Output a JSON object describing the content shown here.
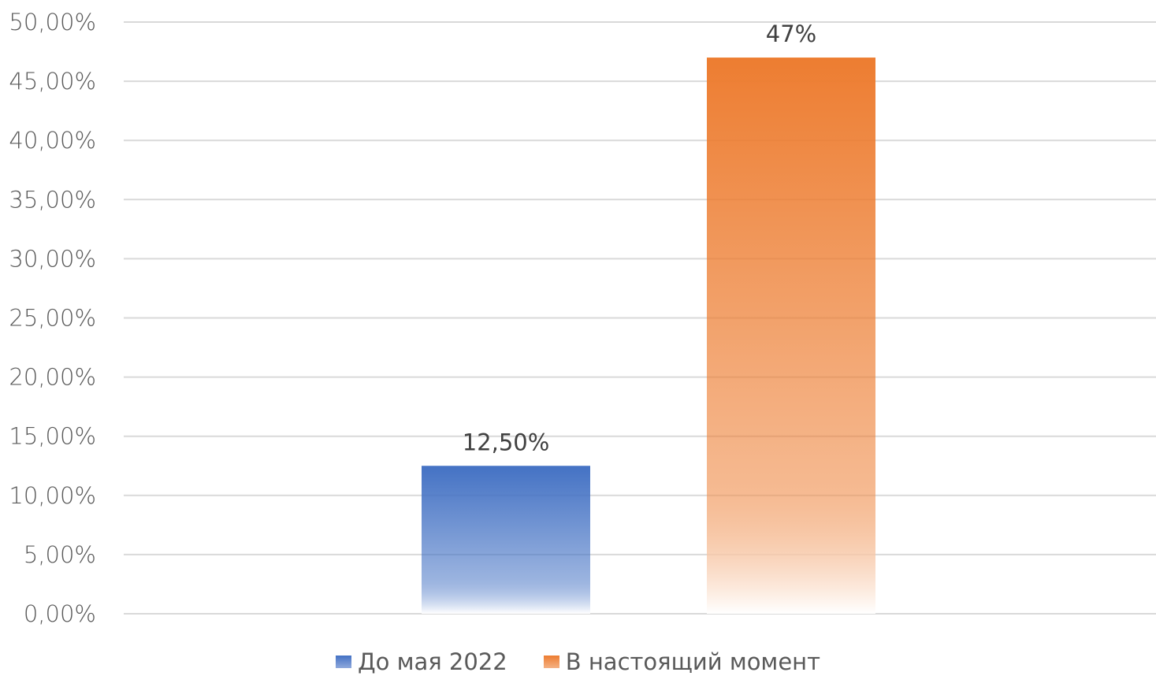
{
  "chart_data": {
    "type": "bar",
    "title": "",
    "xlabel": "",
    "ylabel": "",
    "categories": [
      ""
    ],
    "ylim": [
      0,
      50
    ],
    "y_ticks": [
      "0,00%",
      "5,00%",
      "10,00%",
      "15,00%",
      "20,00%",
      "25,00%",
      "30,00%",
      "35,00%",
      "40,00%",
      "45,00%",
      "50,00%"
    ],
    "grid": true,
    "legend_position": "bottom",
    "series": [
      {
        "name": "До мая 2022",
        "values": [
          12.5
        ],
        "data_label": "12,50%",
        "color": "#4472C4"
      },
      {
        "name": "В настоящий момент",
        "values": [
          47
        ],
        "data_label": "47%",
        "color": "#ED7D31"
      }
    ]
  }
}
